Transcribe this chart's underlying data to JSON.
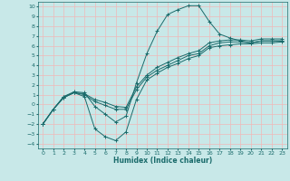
{
  "xlabel": "Humidex (Indice chaleur)",
  "bg_color": "#c8e8e8",
  "grid_color": "#f0b8b8",
  "line_color": "#1a6b6b",
  "xlim": [
    -0.5,
    23.5
  ],
  "ylim": [
    -4.5,
    10.5
  ],
  "xticks": [
    0,
    1,
    2,
    3,
    4,
    5,
    6,
    7,
    8,
    9,
    10,
    11,
    12,
    13,
    14,
    15,
    16,
    17,
    18,
    19,
    20,
    21,
    22,
    23
  ],
  "yticks": [
    -4,
    -3,
    -2,
    -1,
    0,
    1,
    2,
    3,
    4,
    5,
    6,
    7,
    8,
    9,
    10
  ],
  "series": [
    {
      "x": [
        0,
        1,
        2,
        3,
        4,
        5,
        6,
        7,
        8,
        9,
        10,
        11,
        12,
        13,
        14,
        15,
        16,
        17,
        18,
        19,
        20,
        21,
        22,
        23
      ],
      "y": [
        -2.0,
        -0.5,
        0.8,
        1.3,
        1.2,
        -0.2,
        -1.0,
        -1.8,
        -1.2,
        2.2,
        5.2,
        7.5,
        9.2,
        9.7,
        10.1,
        10.1,
        8.5,
        7.2,
        6.8,
        6.5,
        6.3,
        6.5,
        6.5,
        6.5
      ]
    },
    {
      "x": [
        0,
        1,
        2,
        3,
        4,
        5,
        6,
        7,
        8,
        9,
        10,
        11,
        12,
        13,
        14,
        15,
        16,
        17,
        18,
        19,
        20,
        21,
        22,
        23
      ],
      "y": [
        -2.0,
        -0.5,
        0.7,
        1.2,
        1.1,
        0.5,
        0.2,
        -0.2,
        -0.3,
        1.8,
        3.0,
        3.8,
        4.3,
        4.8,
        5.2,
        5.5,
        6.3,
        6.5,
        6.6,
        6.6,
        6.5,
        6.7,
        6.7,
        6.7
      ]
    },
    {
      "x": [
        0,
        1,
        2,
        3,
        4,
        5,
        6,
        7,
        8,
        9,
        10,
        11,
        12,
        13,
        14,
        15,
        16,
        17,
        18,
        19,
        20,
        21,
        22,
        23
      ],
      "y": [
        -2.0,
        -0.5,
        0.7,
        1.2,
        1.0,
        0.3,
        -0.1,
        -0.5,
        -0.5,
        1.5,
        2.8,
        3.5,
        4.0,
        4.5,
        5.0,
        5.2,
        6.0,
        6.3,
        6.4,
        6.4,
        6.3,
        6.5,
        6.5,
        6.5
      ]
    },
    {
      "x": [
        0,
        1,
        2,
        3,
        4,
        5,
        6,
        7,
        8,
        9,
        10,
        11,
        12,
        13,
        14,
        15,
        16,
        17,
        18,
        19,
        20,
        21,
        22,
        23
      ],
      "y": [
        -2.0,
        -0.5,
        0.8,
        1.2,
        0.8,
        -2.5,
        -3.3,
        -3.7,
        -2.8,
        0.5,
        2.5,
        3.2,
        3.8,
        4.2,
        4.7,
        5.0,
        5.8,
        6.0,
        6.1,
        6.2,
        6.2,
        6.3,
        6.3,
        6.4
      ]
    }
  ]
}
